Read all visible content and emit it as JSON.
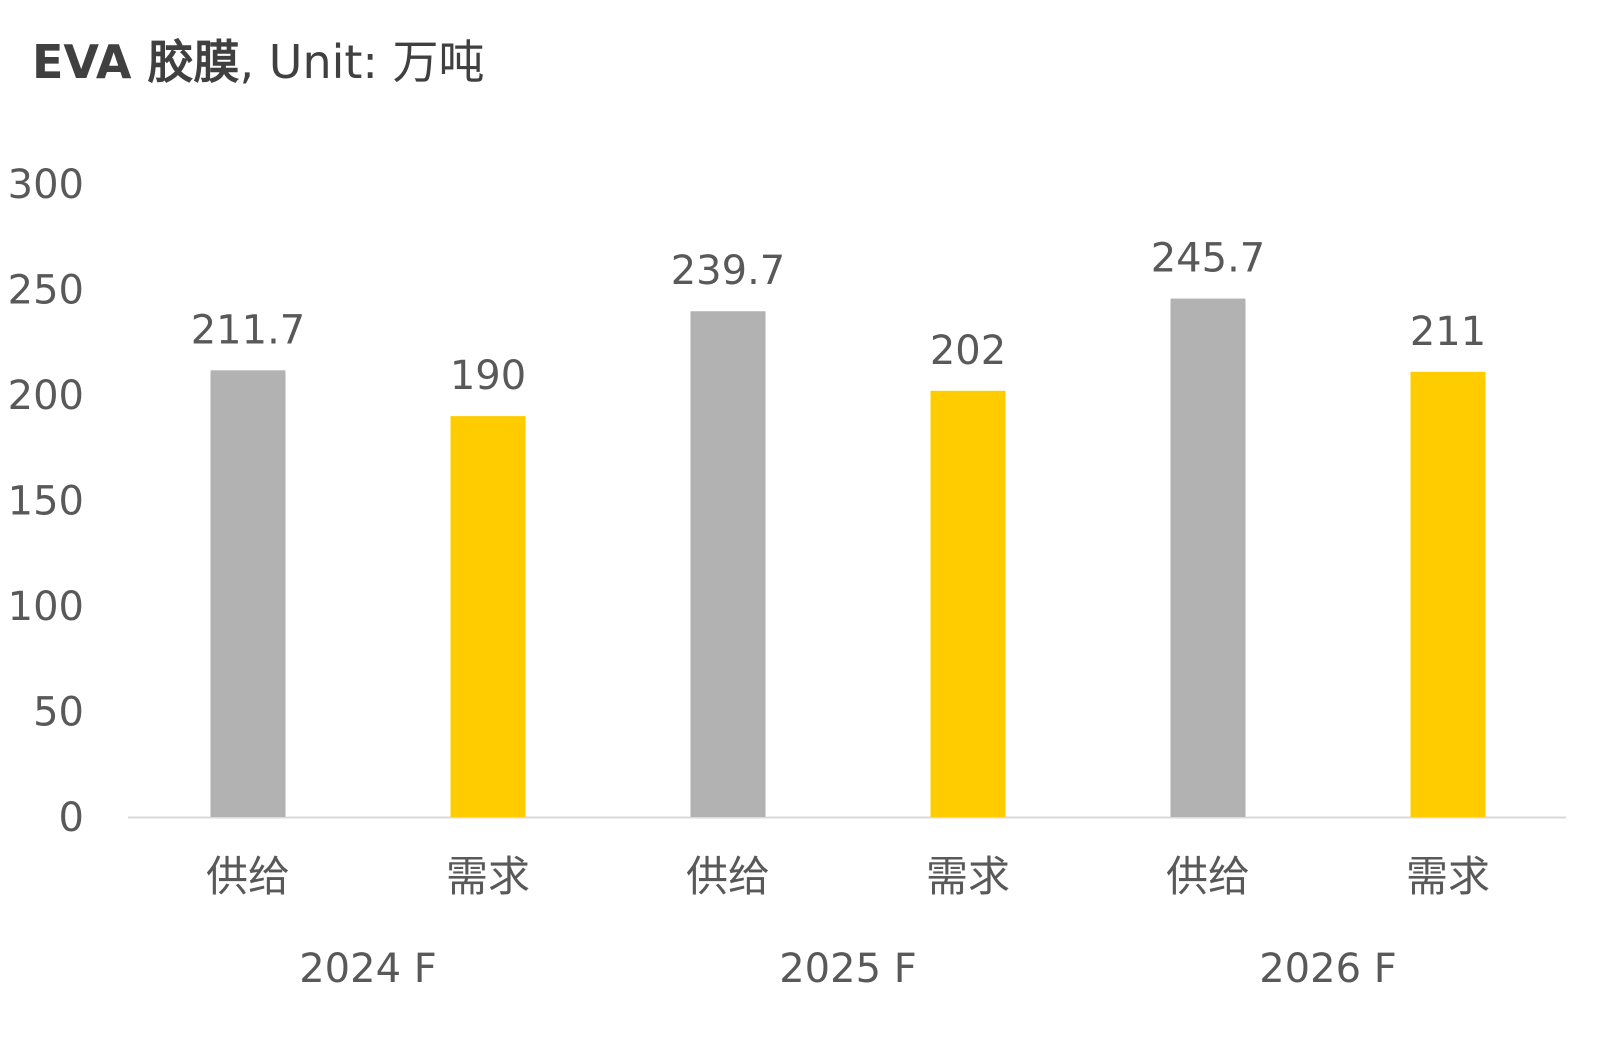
{
  "title": {
    "bold": "EVA 胶膜",
    "rest": ", Unit: 万吨"
  },
  "colors": {
    "supply": "#b2b2b2",
    "demand": "#ffcc00",
    "axis": "#d9d9d9",
    "text": "#595959"
  },
  "chart_data": {
    "type": "bar",
    "title": "EVA 胶膜, Unit: 万吨",
    "groups": [
      "2024 F",
      "2025 F",
      "2026 F"
    ],
    "categories": [
      "供给",
      "需求",
      "供给",
      "需求",
      "供给",
      "需求"
    ],
    "values": [
      211.7,
      190,
      239.7,
      202,
      245.7,
      211
    ],
    "value_labels": [
      "211.7",
      "190",
      "239.7",
      "202",
      "245.7",
      "211"
    ],
    "bar_colors": [
      "supply",
      "demand",
      "supply",
      "demand",
      "supply",
      "demand"
    ],
    "ylim": [
      0,
      300
    ],
    "yticks": [
      0,
      50,
      100,
      150,
      200,
      250,
      300
    ],
    "grid": false,
    "legend": "none"
  }
}
